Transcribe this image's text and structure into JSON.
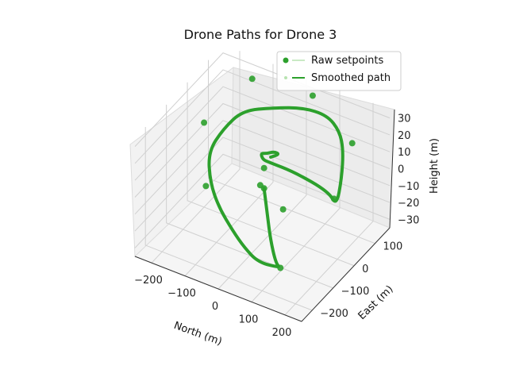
{
  "chart_data": {
    "type": "line",
    "title": "Drone Paths for Drone 3",
    "xlabel": "North (m)",
    "ylabel": "East (m)",
    "zlabel": "Height (m)",
    "xlim": [
      -250,
      250
    ],
    "ylim": [
      -250,
      170
    ],
    "zlim": [
      -35,
      35
    ],
    "x_ticks": [
      -200,
      -100,
      0,
      100,
      200
    ],
    "y_ticks": [
      -200,
      -100,
      0,
      100
    ],
    "z_ticks": [
      -30,
      -20,
      -10,
      0,
      10,
      20,
      30
    ],
    "grid": true,
    "legend_position": "top-right",
    "colors": {
      "raw": "#b7e3b0",
      "smoothed": "#2ca02c"
    },
    "series": [
      {
        "name": "Raw setpoints",
        "style": "markers",
        "x": [
          -20,
          180,
          190,
          150,
          0,
          -150,
          -200,
          -100,
          0,
          100,
          -20
        ],
        "y": [
          0,
          -240,
          0,
          150,
          200,
          150,
          0,
          -150,
          -50,
          -100,
          0
        ],
        "z": [
          -10,
          -10,
          0,
          10,
          20,
          25,
          15,
          5,
          0,
          0,
          2
        ]
      },
      {
        "name": "Smoothed path",
        "style": "line",
        "x": [
          -20,
          40,
          100,
          160,
          180,
          120,
          60,
          0,
          -80,
          -150,
          -200,
          -180,
          -140,
          -60,
          20,
          100,
          150,
          180,
          200,
          210,
          170,
          60,
          -20,
          -30,
          -30,
          -10,
          10,
          20,
          0
        ],
        "y": [
          0,
          -80,
          -160,
          -230,
          -240,
          -250,
          -220,
          -180,
          -120,
          -50,
          20,
          60,
          90,
          110,
          120,
          110,
          90,
          60,
          20,
          -20,
          5,
          20,
          20,
          10,
          0,
          -5,
          0,
          10,
          0
        ],
        "z": [
          -10,
          -10,
          -10,
          -10,
          -10,
          -10,
          -10,
          -10,
          -10,
          -10,
          -5,
          5,
          15,
          20,
          25,
          28,
          25,
          20,
          10,
          0,
          2,
          3,
          3,
          5,
          10,
          12,
          14,
          12,
          10
        ]
      }
    ]
  }
}
